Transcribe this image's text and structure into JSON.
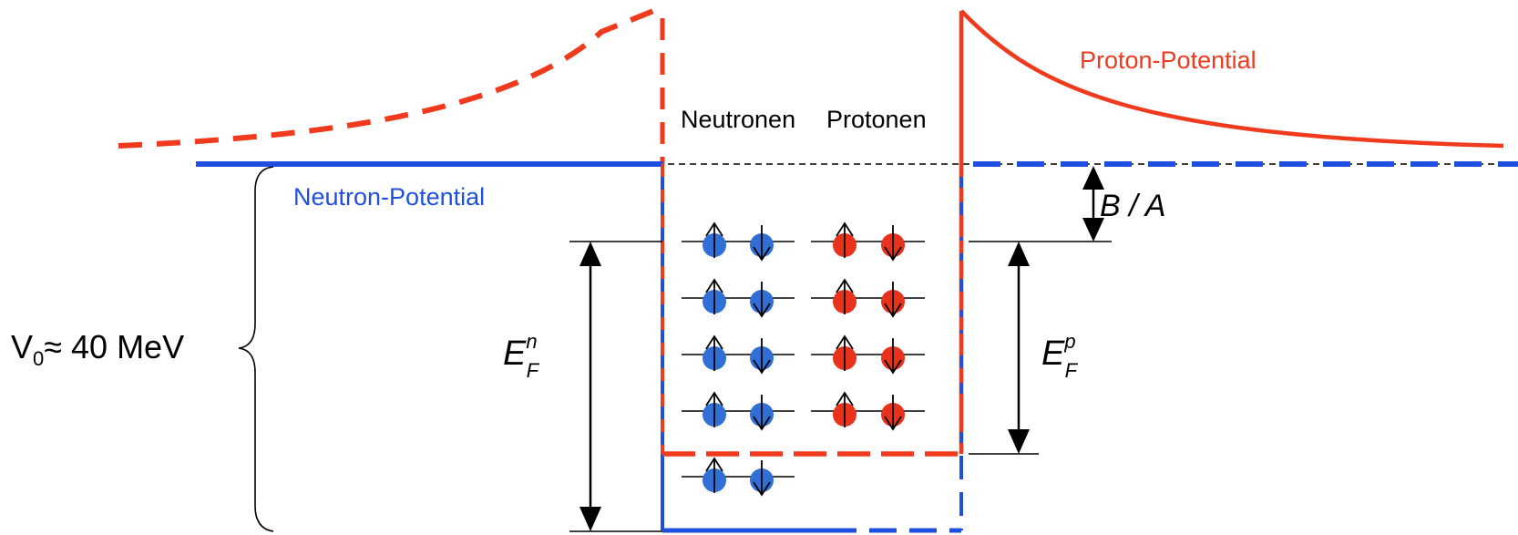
{
  "labels": {
    "neutronen": "Neutronen",
    "protonen": "Protonen",
    "proton_potential": "Proton-Potential",
    "neutron_potential": "Neutron-Potential",
    "v0_prefix": "V",
    "v0_sub": "0",
    "v0_value": "≈ 40 MeV",
    "ba": "B / A",
    "ef_base": "E",
    "ef_sub": "F",
    "ef_n_sup": "n",
    "ef_p_sup": "p"
  },
  "levels": {
    "neutron_levels": 5,
    "proton_levels": 4,
    "particles_per_level": 2
  },
  "colors": {
    "neutron": "#1f4fe0",
    "neutron_particle": "#2f6fd6",
    "proton": "#f03a1e",
    "proton_particle": "#e8321c",
    "line": "#000000"
  }
}
